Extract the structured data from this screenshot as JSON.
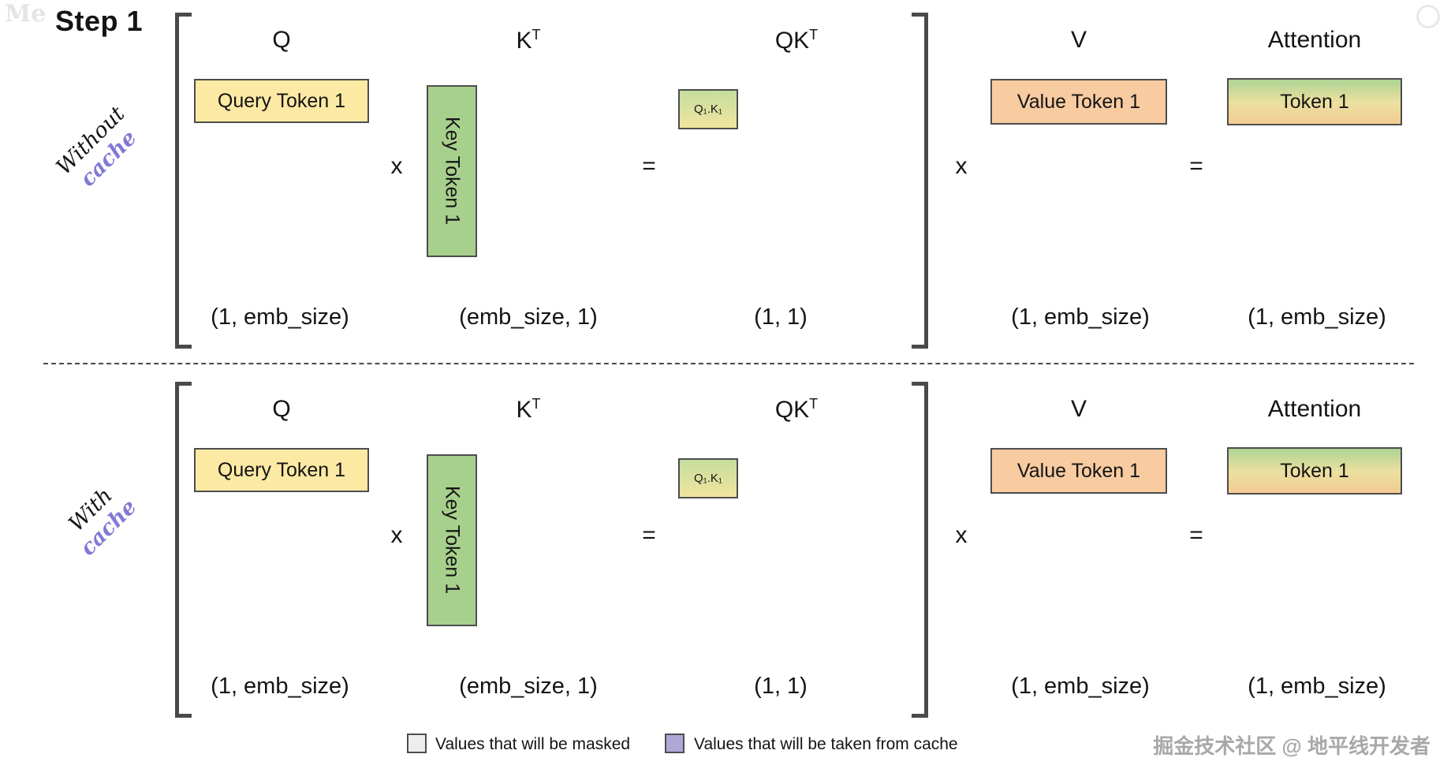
{
  "title": "Step 1",
  "sections": [
    {
      "row_label": {
        "line1": "Without",
        "line2": "cache"
      },
      "headers": {
        "q": "Q",
        "k_base": "K",
        "k_sup": "T",
        "qk_base": "QK",
        "qk_sup": "T",
        "v": "V",
        "attention": "Attention"
      },
      "operators": {
        "x1": "x",
        "eq1": "=",
        "x2": "x",
        "eq2": "="
      },
      "boxes": {
        "query": "Query Token 1",
        "key": "Key Token 1",
        "qk": "Q₁.K₁",
        "value": "Value Token 1",
        "attention": "Token 1"
      },
      "dims": {
        "q": "(1, emb_size)",
        "k": "(emb_size, 1)",
        "qk": "(1, 1)",
        "v": "(1, emb_size)",
        "attention": "(1, emb_size)"
      }
    },
    {
      "row_label": {
        "line1": "With",
        "line2": "cache"
      },
      "headers": {
        "q": "Q",
        "k_base": "K",
        "k_sup": "T",
        "qk_base": "QK",
        "qk_sup": "T",
        "v": "V",
        "attention": "Attention"
      },
      "operators": {
        "x1": "x",
        "eq1": "=",
        "x2": "x",
        "eq2": "="
      },
      "boxes": {
        "query": "Query Token 1",
        "key": "Key Token 1",
        "qk": "Q₁.K₁",
        "value": "Value Token 1",
        "attention": "Token 1"
      },
      "dims": {
        "q": "(1, emb_size)",
        "k": "(emb_size, 1)",
        "qk": "(1, 1)",
        "v": "(1, emb_size)",
        "attention": "(1, emb_size)"
      }
    }
  ],
  "legend": {
    "masked": "Values that will be masked",
    "from_cache": "Values that will be taken from cache"
  },
  "watermarks": {
    "bottom_right": "掘金技术社区 @ 地平线开发者",
    "top_left": "Me"
  },
  "colors": {
    "query_box": "#fce9a4",
    "key_box": "#a8d08d",
    "value_box": "#f8cba1",
    "qk_box_gradient_top": "#c6dd9d",
    "qk_box_gradient_bottom": "#f0e5a0",
    "attention_gradient_top": "#aed494",
    "attention_gradient_mid": "#ece0a0",
    "attention_gradient_bottom": "#f3cb95",
    "cache_text": "#8279d6",
    "legend_masked_swatch": "#ededed",
    "legend_cache_swatch": "#b1a6d8",
    "box_border": "#4d4d4d",
    "bracket": "#4a4a4a"
  }
}
